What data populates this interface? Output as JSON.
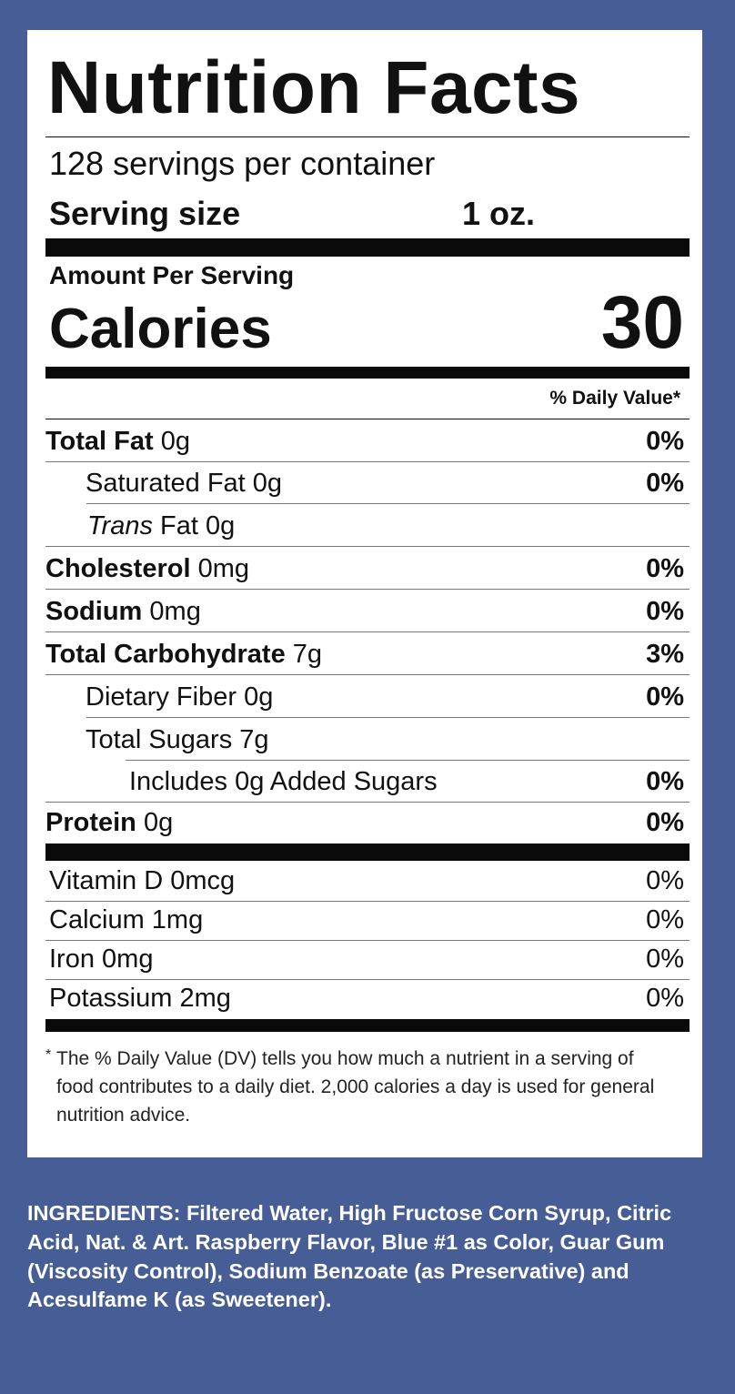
{
  "title": "Nutrition Facts",
  "servings_per_container": "128 servings per container",
  "serving_size": {
    "label": "Serving size",
    "value": "1 oz."
  },
  "amount_per_serving": "Amount Per Serving",
  "calories": {
    "label": "Calories",
    "value": "30"
  },
  "daily_value_header": "% Daily Value*",
  "nutrients": [
    {
      "name": "Total Fat",
      "amount": "0g",
      "dv": "0%",
      "bold": true,
      "indent": 0
    },
    {
      "name": "Saturated Fat",
      "amount": "0g",
      "dv": "0%",
      "bold": false,
      "indent": 1
    },
    {
      "name": "Trans",
      "name_suffix": "Fat",
      "amount": "0g",
      "dv": "",
      "bold": false,
      "indent": 1
    },
    {
      "name": "Cholesterol",
      "amount": "0mg",
      "dv": "0%",
      "bold": true,
      "indent": 0
    },
    {
      "name": "Sodium",
      "amount": "0mg",
      "dv": "0%",
      "bold": true,
      "indent": 0
    },
    {
      "name": "Total Carbohydrate",
      "amount": "7g",
      "dv": "3%",
      "bold": true,
      "indent": 0
    },
    {
      "name": "Dietary Fiber",
      "amount": "0g",
      "dv": "0%",
      "bold": false,
      "indent": 1
    },
    {
      "name": "Total Sugars",
      "amount": "7g",
      "dv": "",
      "bold": false,
      "indent": 1
    },
    {
      "name": "Includes 0g Added Sugars",
      "amount": "",
      "dv": "0%",
      "bold": false,
      "indent": 2
    },
    {
      "name": "Protein",
      "amount": "0g",
      "dv": "0%",
      "bold": true,
      "indent": 0
    }
  ],
  "vitamins": [
    {
      "name": "Vitamin D 0mcg",
      "dv": "0%"
    },
    {
      "name": "Calcium 1mg",
      "dv": "0%"
    },
    {
      "name": "Iron 0mg",
      "dv": "0%"
    },
    {
      "name": "Potassium 2mg",
      "dv": "0%"
    }
  ],
  "footnote": {
    "star": "*",
    "text": "The % Daily Value (DV) tells you how much a nutrient in a serving of food contributes to a daily diet. 2,000 calories a day is used for general nutrition advice."
  },
  "ingredients": "INGREDIENTS: Filtered Water, High Fructose Corn Syrup, Citric Acid, Nat. & Art. Raspberry Flavor, Blue #1 as Color, Guar Gum (Viscosity Control), Sodium Benzoate (as Preservative) and Acesulfame K (as Sweetener).",
  "colors": {
    "background": "#475d95",
    "panel": "#ffffff",
    "text": "#111111"
  }
}
